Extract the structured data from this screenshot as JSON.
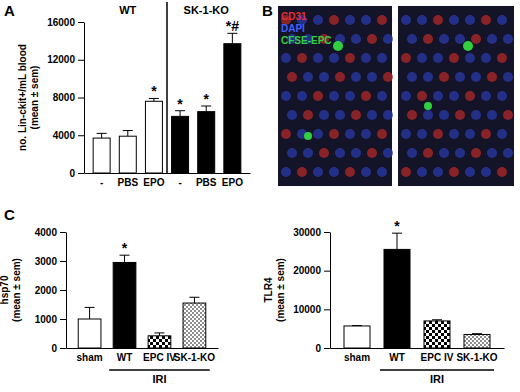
{
  "figure": {
    "panel_labels": [
      "A",
      "B",
      "C"
    ],
    "image_legend": [
      {
        "label": "CD31",
        "color": "#e03030"
      },
      {
        "label": "DAPI",
        "color": "#4060ff"
      },
      {
        "label": "CFSE-EPC",
        "color": "#30d040"
      }
    ]
  },
  "chart_data": [
    {
      "type": "bar",
      "y_label": [
        "no. Lin-ckit+/mL blood",
        "(mean ± sem)"
      ],
      "categories": [
        "-",
        "PBS",
        "EPO",
        "-",
        "PBS",
        "EPO"
      ],
      "groups": [
        {
          "label": "WT",
          "categories": [
            "-",
            "PBS",
            "EPO"
          ]
        },
        {
          "label": "SK-1-KO",
          "categories": [
            "-",
            "PBS",
            "EPO"
          ]
        }
      ],
      "series": [
        {
          "values": [
            3700,
            3900,
            7600,
            6000,
            6500,
            13700
          ],
          "errors": [
            500,
            600,
            300,
            600,
            600,
            1100
          ],
          "colors": [
            "#ffffff",
            "#ffffff",
            "#ffffff",
            "#000000",
            "#000000",
            "#000000"
          ],
          "annotations": [
            null,
            null,
            "*",
            "*",
            "*",
            "*#"
          ]
        }
      ],
      "ylim": [
        0,
        16000
      ],
      "yticks": [
        0,
        4000,
        8000,
        12000,
        16000
      ],
      "grid": false
    },
    {
      "type": "bar",
      "y_label": [
        "hsp70",
        "(mean ± sem)"
      ],
      "categories": [
        "sham",
        "WT",
        "EPC IV",
        "SK-1-KO"
      ],
      "groups": [
        {
          "label": "IRI",
          "categories": [
            "WT",
            "EPC IV",
            "SK-1-KO"
          ]
        }
      ],
      "series": [
        {
          "values": [
            1000,
            2950,
            420,
            1550
          ],
          "errors": [
            400,
            250,
            100,
            200
          ],
          "colors": [
            "#ffffff",
            "#000000",
            "#808080",
            "#c0c0c0"
          ],
          "annotations": [
            null,
            "*",
            null,
            null
          ]
        }
      ],
      "ylim": [
        0,
        4000
      ],
      "yticks": [
        0,
        1000,
        2000,
        3000,
        4000
      ],
      "grid": false
    },
    {
      "type": "bar",
      "y_label": [
        "TLR4",
        "(mean ± sem)"
      ],
      "categories": [
        "sham",
        "WT",
        "EPC IV",
        "SK-1-KO"
      ],
      "groups": [
        {
          "label": "IRI",
          "categories": [
            "WT",
            "EPC IV",
            "SK-1-KO"
          ]
        }
      ],
      "series": [
        {
          "values": [
            5700,
            25500,
            7000,
            3500
          ],
          "errors": [
            100,
            4200,
            300,
            200
          ],
          "colors": [
            "#ffffff",
            "#000000",
            "#808080",
            "#c0c0c0"
          ],
          "annotations": [
            null,
            "*",
            null,
            null
          ]
        }
      ],
      "ylim": [
        0,
        30000
      ],
      "yticks": [
        0,
        10000,
        20000,
        30000
      ],
      "grid": false
    }
  ]
}
